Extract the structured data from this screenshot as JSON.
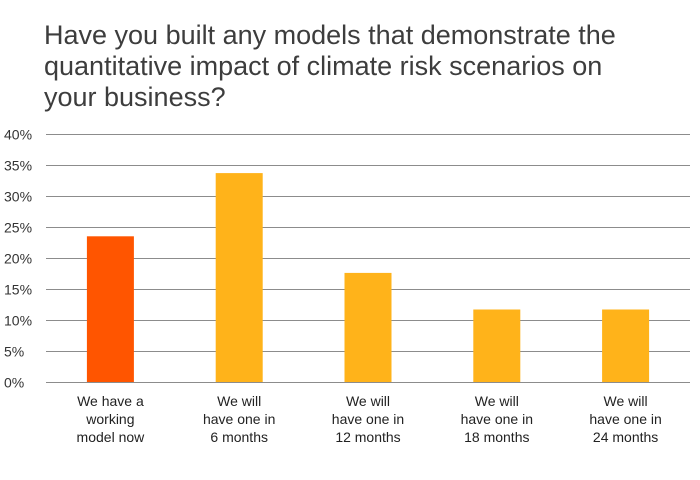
{
  "chart_data": {
    "type": "bar",
    "title_lines": [
      "Have you built any models that demonstrate the",
      "quantitative impact of climate risk scenarios on",
      "your business?"
    ],
    "categories": [
      [
        "We have a",
        "working",
        "model now"
      ],
      [
        "We will",
        "have one in",
        "6 months"
      ],
      [
        "We will",
        "have one in",
        "12 months"
      ],
      [
        "We will",
        "have one in",
        "18 months"
      ],
      [
        "We will",
        "have one in",
        "24 months"
      ]
    ],
    "values": [
      23.5,
      33.7,
      17.6,
      11.7,
      11.7
    ],
    "bar_colors": [
      "#ff5500",
      "#ffb31a",
      "#ffb31a",
      "#ffb31a",
      "#ffb31a"
    ],
    "y_ticks": [
      "0%",
      "5%",
      "10%",
      "15%",
      "20%",
      "25%",
      "30%",
      "35%",
      "40%"
    ],
    "ylim": [
      0,
      40
    ],
    "y_step": 5,
    "grid": true,
    "legend": false
  }
}
